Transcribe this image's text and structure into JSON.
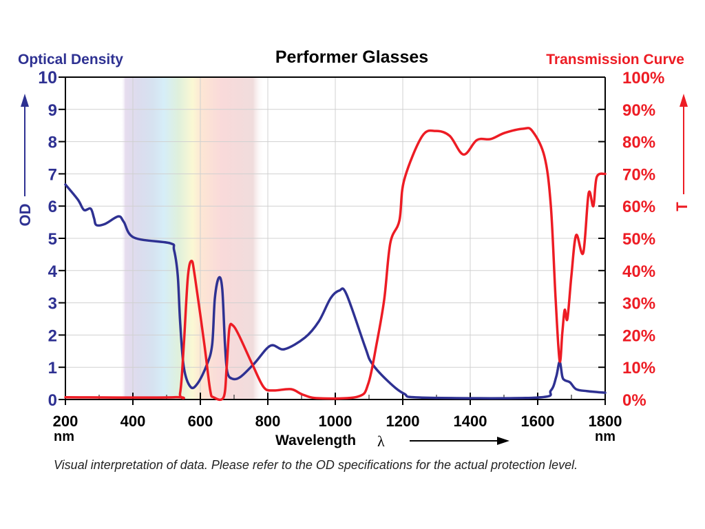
{
  "chart_data": {
    "type": "line",
    "title": "Performer Glasses",
    "xlabel": "Wavelength",
    "xlabel_symbol": "λ",
    "x_unit": "nm",
    "ylabel_left": "OD",
    "ylabel_left_title": "Optical Density",
    "ylabel_right": "T",
    "ylabel_right_title": "Transmission Curve",
    "xlim": [
      200,
      1800
    ],
    "ylim_left": [
      0,
      10
    ],
    "ylim_right": [
      0,
      100
    ],
    "x_ticks": [
      "200",
      "400",
      "600",
      "800",
      "1000",
      "1200",
      "1400",
      "1600",
      "1800"
    ],
    "y_ticks_left": [
      "0",
      "1",
      "2",
      "3",
      "4",
      "5",
      "6",
      "7",
      "8",
      "9",
      "10"
    ],
    "y_ticks_right": [
      "0%",
      "10%",
      "20%",
      "30%",
      "40%",
      "50%",
      "60%",
      "70%",
      "80%",
      "90%",
      "100%"
    ],
    "grid": true,
    "visible_spectrum_band_nm": [
      365,
      790
    ],
    "colors": {
      "od": "#2e3192",
      "transmission": "#ed1c24",
      "axis": "#000000"
    },
    "series": [
      {
        "axis": "left",
        "color": "#2e3192",
        "x": [
          200,
          237,
          255,
          275,
          285,
          292,
          318,
          357,
          373,
          404,
          510,
          522,
          533,
          540,
          551,
          571,
          592,
          619,
          635,
          643,
          655,
          665,
          673,
          680,
          696,
          720,
          761,
          808,
          849,
          910,
          951,
          986,
          1012,
          1033,
          1088,
          1108,
          1155,
          1204,
          1257,
          1598,
          1639,
          1655,
          1665,
          1673,
          1680,
          1696,
          1714,
          1747,
          1800
        ],
        "y": [
          6.67,
          6.2,
          5.88,
          5.92,
          5.62,
          5.41,
          5.45,
          5.68,
          5.51,
          5.02,
          4.85,
          4.64,
          3.85,
          2.42,
          1.0,
          0.39,
          0.5,
          1.07,
          1.7,
          3.14,
          3.78,
          3.42,
          1.71,
          0.85,
          0.64,
          0.71,
          1.13,
          1.67,
          1.56,
          1.92,
          2.42,
          3.14,
          3.38,
          3.27,
          1.64,
          1.13,
          0.58,
          0.18,
          0.06,
          0.06,
          0.28,
          0.71,
          1.17,
          0.71,
          0.6,
          0.53,
          0.32,
          0.26,
          0.21
        ]
      },
      {
        "axis": "right",
        "color": "#ed1c24",
        "x": [
          200,
          522,
          540,
          551,
          563,
          574,
          584,
          612,
          629,
          639,
          669,
          678,
          686,
          696,
          714,
          755,
          788,
          816,
          869,
          904,
          951,
          1067,
          1098,
          1122,
          1145,
          1163,
          1190,
          1204,
          1257,
          1298,
          1339,
          1380,
          1420,
          1461,
          1502,
          1557,
          1584,
          1620,
          1639,
          1653,
          1665,
          1673,
          1680,
          1688,
          1700,
          1714,
          1735,
          1751,
          1765,
          1775,
          1800
        ],
        "y": [
          0.7,
          0.7,
          2,
          17,
          38,
          43,
          38,
          17,
          3,
          0.7,
          0.7,
          10,
          22,
          23,
          20,
          10.7,
          3.8,
          2.8,
          3.2,
          1.5,
          0.4,
          0.9,
          5,
          17,
          31,
          48.5,
          55.5,
          68,
          81.6,
          83.3,
          81.8,
          76,
          80.5,
          80.8,
          82.7,
          84,
          83.3,
          75.4,
          60,
          31.4,
          12,
          20.7,
          27.8,
          25,
          38.5,
          51,
          45.5,
          64,
          60,
          69,
          70
        ]
      }
    ]
  },
  "footnote": "Visual interpretation of data. Please refer to the OD specifications for the actual protection level."
}
